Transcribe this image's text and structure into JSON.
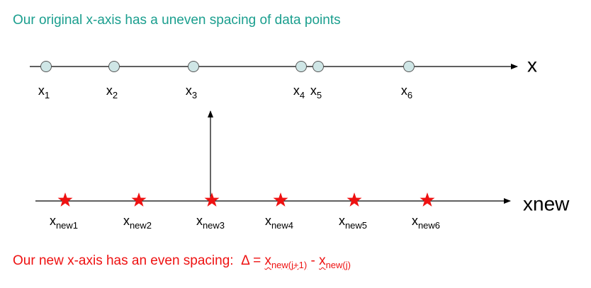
{
  "title": "Our original x-axis has a uneven spacing of data points",
  "axes": {
    "original": {
      "label": "x",
      "points": [
        {
          "base": "x",
          "sub": "1"
        },
        {
          "base": "x",
          "sub": "2"
        },
        {
          "base": "x",
          "sub": "3"
        },
        {
          "base": "x",
          "sub": "4"
        },
        {
          "base": "x",
          "sub": "5"
        },
        {
          "base": "x",
          "sub": "6"
        }
      ]
    },
    "new": {
      "label": "xnew",
      "points": [
        {
          "base": "x",
          "sub": "new1"
        },
        {
          "base": "x",
          "sub": "new2"
        },
        {
          "base": "x",
          "sub": "new3"
        },
        {
          "base": "x",
          "sub": "new4"
        },
        {
          "base": "x",
          "sub": "new5"
        },
        {
          "base": "x",
          "sub": "new6"
        }
      ]
    }
  },
  "footer": {
    "text": "Our new x-axis has an even spacing:",
    "delta": "Δ",
    "equals": "=",
    "term1_base": "x",
    "term1_sub": "new(j+1)",
    "minus": "-",
    "term2_base": "x",
    "term2_sub": "new(j)"
  },
  "colors": {
    "title": "#1a9e8e",
    "footer": "#ee1111",
    "circle_fill": "#cfe6e6",
    "star_fill": "#ee1111",
    "axis": "#000000"
  }
}
